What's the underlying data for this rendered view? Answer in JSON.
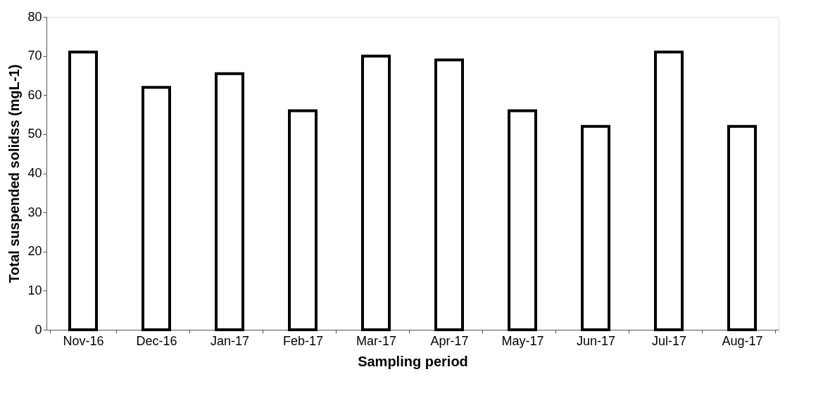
{
  "chart_data": {
    "type": "bar",
    "xlabel": "Sampling period",
    "ylabel": "Total suspended solidss  (mgL-1)",
    "categories": [
      "Nov-16",
      "Dec-16",
      "Jan-17",
      "Feb-17",
      "Mar-17",
      "Apr-17",
      "May-17",
      "Jun-17",
      "Jul-17",
      "Aug-17"
    ],
    "values": [
      71,
      62,
      65.5,
      56,
      70,
      69,
      56,
      52,
      71,
      52
    ],
    "color": "#ffffff",
    "ylim": [
      0,
      80
    ],
    "yticks": [
      0,
      10,
      20,
      30,
      40,
      50,
      60,
      70,
      80
    ],
    "grid": false
  }
}
